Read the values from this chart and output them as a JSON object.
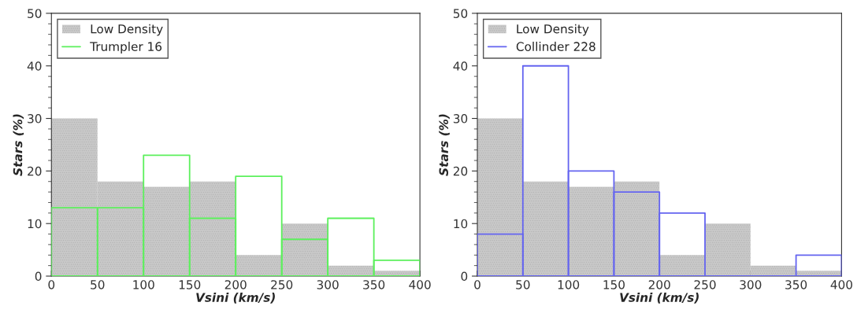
{
  "chart_data": [
    {
      "type": "histogram",
      "xlabel": "Vsini (km/s)",
      "ylabel": "Stars (%)",
      "bins": [
        0,
        50,
        100,
        150,
        200,
        250,
        300,
        350,
        400
      ],
      "xlim": [
        0,
        400
      ],
      "ylim": [
        0,
        50
      ],
      "xticks": [
        0,
        50,
        100,
        150,
        200,
        250,
        300,
        350,
        400
      ],
      "yticks": [
        0,
        10,
        20,
        30,
        40,
        50
      ],
      "legend": "top left",
      "grid": false,
      "series": [
        {
          "name": "Low Density",
          "color": "#c8c8c8",
          "values": [
            30,
            18,
            17,
            18,
            4,
            10,
            2,
            1
          ]
        },
        {
          "name": "Trumpler 16",
          "color": "#5cf05c",
          "values": [
            13,
            13,
            23,
            11,
            19,
            7,
            11,
            3
          ]
        }
      ]
    },
    {
      "type": "histogram",
      "xlabel": "Vsini (km/s)",
      "ylabel": "Stars (%)",
      "bins": [
        0,
        50,
        100,
        150,
        200,
        250,
        300,
        350,
        400
      ],
      "xlim": [
        0,
        400
      ],
      "ylim": [
        0,
        50
      ],
      "xticks": [
        0,
        50,
        100,
        150,
        200,
        250,
        300,
        350,
        400
      ],
      "yticks": [
        0,
        10,
        20,
        30,
        40,
        50
      ],
      "legend": "top left",
      "grid": false,
      "series": [
        {
          "name": "Low Density",
          "color": "#c8c8c8",
          "values": [
            30,
            18,
            17,
            18,
            4,
            10,
            2,
            1
          ]
        },
        {
          "name": "Collinder 228",
          "color": "#6464f0",
          "values": [
            8,
            40,
            20,
            16,
            12,
            0,
            0,
            4
          ]
        }
      ]
    }
  ]
}
